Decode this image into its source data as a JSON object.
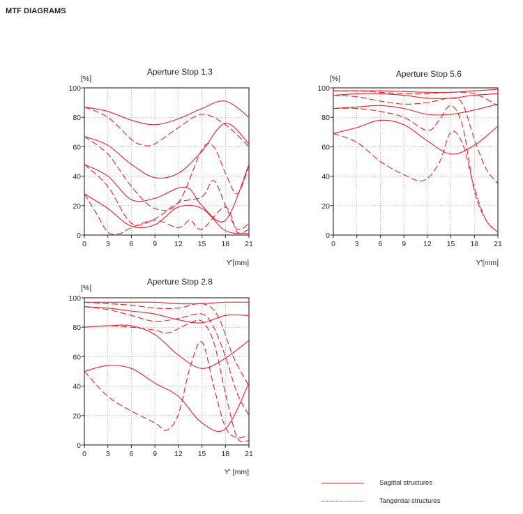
{
  "page": {
    "title": "MTF DIAGRAMS"
  },
  "colors": {
    "curve": "#e8202a",
    "axis": "#222222",
    "grid": "#888888"
  },
  "legend": {
    "sagittal": "Sagittal structures",
    "tangential": "Tangential structures"
  },
  "chart_data": [
    {
      "type": "line",
      "title": "Aperture Stop 1.3",
      "xlabel": "Y'[mm]",
      "ylabel": "[%]",
      "xlim": [
        0,
        21
      ],
      "ylim": [
        0,
        100
      ],
      "xticks": [
        0,
        3,
        6,
        9,
        12,
        15,
        18,
        21
      ],
      "yticks": [
        0,
        20,
        40,
        60,
        80,
        100
      ],
      "grid": true,
      "series": [
        {
          "name": "sagittal-5lp",
          "style": "solid",
          "x": [
            0,
            3,
            6,
            9,
            12,
            15,
            18,
            21
          ],
          "y": [
            87,
            84,
            78,
            75,
            79,
            86,
            91,
            80
          ]
        },
        {
          "name": "tangential-5lp",
          "style": "dashed",
          "x": [
            0,
            3,
            6,
            7.5,
            9,
            12,
            15,
            18,
            21
          ],
          "y": [
            87,
            80,
            65,
            61,
            62,
            73,
            82,
            75,
            60
          ]
        },
        {
          "name": "sagittal-10lp",
          "style": "solid",
          "x": [
            0,
            3,
            6,
            9,
            12,
            15,
            18,
            21
          ],
          "y": [
            67,
            61,
            48,
            39,
            42,
            57,
            76,
            62
          ]
        },
        {
          "name": "tangential-10lp",
          "style": "dashed",
          "x": [
            0,
            3,
            6,
            9,
            12,
            15,
            16.5,
            18,
            19.5,
            21
          ],
          "y": [
            67,
            55,
            33,
            18,
            22,
            58,
            60,
            42,
            28,
            47
          ]
        },
        {
          "name": "sagittal-20lp",
          "style": "solid",
          "x": [
            0,
            3,
            6,
            9,
            12,
            13.5,
            15,
            18,
            21
          ],
          "y": [
            48,
            40,
            24,
            25,
            32,
            31,
            20,
            10,
            48
          ]
        },
        {
          "name": "tangential-20lp",
          "style": "dashed",
          "x": [
            0,
            3,
            6,
            9,
            12,
            15,
            16.5,
            18,
            19.5,
            21
          ],
          "y": [
            48,
            33,
            8,
            11,
            22,
            26,
            37,
            20,
            4,
            8
          ]
        },
        {
          "name": "sagittal-40lp",
          "style": "solid",
          "x": [
            0,
            3,
            6,
            9,
            12,
            15,
            18,
            21
          ],
          "y": [
            28,
            18,
            6,
            7,
            19,
            18,
            3,
            1
          ]
        },
        {
          "name": "tangential-40lp",
          "style": "dashed",
          "x": [
            0,
            1.5,
            3,
            4.5,
            6,
            9,
            12,
            13.5,
            15,
            18,
            19.5,
            21
          ],
          "y": [
            28,
            15,
            2,
            1,
            5,
            10,
            5,
            10,
            4,
            19,
            2,
            4
          ]
        }
      ]
    },
    {
      "type": "line",
      "title": "Aperture Stop 5.6",
      "xlabel": "Y'[mm]",
      "ylabel": "[%]",
      "xlim": [
        0,
        21
      ],
      "ylim": [
        0,
        100
      ],
      "xticks": [
        0,
        3,
        6,
        9,
        12,
        15,
        18,
        21
      ],
      "yticks": [
        0,
        20,
        40,
        60,
        80,
        100
      ],
      "grid": true,
      "series": [
        {
          "name": "sagittal-5lp",
          "style": "solid",
          "x": [
            0,
            3,
            6,
            9,
            12,
            15,
            18,
            21
          ],
          "y": [
            98,
            98,
            98,
            97.5,
            97,
            97,
            98,
            99
          ]
        },
        {
          "name": "tangential-5lp",
          "style": "dashed",
          "x": [
            0,
            3,
            6,
            9,
            12,
            15,
            18,
            21
          ],
          "y": [
            98,
            98,
            97,
            96,
            96,
            97,
            96,
            88
          ]
        },
        {
          "name": "sagittal-10lp",
          "style": "solid",
          "x": [
            0,
            3,
            6,
            9,
            12,
            15,
            18,
            21
          ],
          "y": [
            95,
            96,
            96,
            95,
            93,
            93,
            95,
            96
          ]
        },
        {
          "name": "tangential-10lp",
          "style": "dashed",
          "x": [
            0,
            3,
            6,
            9,
            12,
            15,
            16.5,
            18,
            19.5,
            21
          ],
          "y": [
            95,
            94,
            91,
            89,
            90,
            93,
            89,
            65,
            45,
            35
          ]
        },
        {
          "name": "sagittal-20lp",
          "style": "solid",
          "x": [
            0,
            3,
            6,
            9,
            12,
            15,
            18,
            21
          ],
          "y": [
            86,
            87,
            88,
            86,
            82,
            82,
            85,
            89
          ]
        },
        {
          "name": "tangential-20lp",
          "style": "dashed",
          "x": [
            0,
            3,
            6,
            9,
            12,
            13.5,
            15,
            16.5,
            18,
            19.5,
            21
          ],
          "y": [
            86,
            86,
            84,
            80,
            71,
            78,
            88,
            74,
            30,
            10,
            2
          ]
        },
        {
          "name": "sagittal-40lp",
          "style": "solid",
          "x": [
            0,
            3,
            6,
            9,
            12,
            15,
            18,
            21
          ],
          "y": [
            69,
            73,
            78,
            75,
            64,
            55,
            61,
            74
          ]
        },
        {
          "name": "tangential-40lp",
          "style": "dashed",
          "x": [
            0,
            3,
            6,
            9,
            11.5,
            13.5,
            15,
            16.5,
            18,
            19.5,
            21
          ],
          "y": [
            69,
            63,
            50,
            41,
            37,
            49,
            70,
            62,
            32,
            10,
            2
          ]
        }
      ]
    },
    {
      "type": "line",
      "title": "Aperture Stop 2.8",
      "xlabel": "Y' [mm]",
      "ylabel": "[%]",
      "xlim": [
        0,
        21
      ],
      "ylim": [
        0,
        100
      ],
      "xticks": [
        0,
        3,
        6,
        9,
        12,
        15,
        18,
        21
      ],
      "yticks": [
        0,
        20,
        40,
        60,
        80,
        100
      ],
      "grid": true,
      "series": [
        {
          "name": "sagittal-5lp",
          "style": "solid",
          "x": [
            0,
            3,
            6,
            9,
            12,
            15,
            18,
            21
          ],
          "y": [
            97,
            97,
            97,
            97,
            96,
            96,
            97,
            97
          ]
        },
        {
          "name": "tangential-5lp",
          "style": "dashed",
          "x": [
            0,
            3,
            6,
            9,
            12,
            15,
            17,
            19,
            21
          ],
          "y": [
            97,
            96,
            95,
            93,
            93,
            96,
            88,
            60,
            40
          ]
        },
        {
          "name": "sagittal-10lp",
          "style": "solid",
          "x": [
            0,
            3,
            6,
            9,
            12,
            15,
            18,
            21
          ],
          "y": [
            94,
            93,
            91,
            89,
            85,
            83,
            88,
            88
          ]
        },
        {
          "name": "tangential-10lp",
          "style": "dashed",
          "x": [
            0,
            3,
            6,
            9,
            12,
            15,
            16.5,
            18,
            19.5,
            21
          ],
          "y": [
            94,
            92,
            88,
            84,
            86,
            89,
            80,
            60,
            35,
            20
          ]
        },
        {
          "name": "sagittal-20lp",
          "style": "solid",
          "x": [
            0,
            3,
            6,
            9,
            12,
            15,
            18,
            21
          ],
          "y": [
            80,
            81,
            81,
            75,
            61,
            52,
            59,
            71
          ]
        },
        {
          "name": "tangential-20lp",
          "style": "dashed",
          "x": [
            0,
            3,
            6,
            9,
            10.5,
            12,
            13.5,
            15,
            16.5,
            18,
            19.5,
            21
          ],
          "y": [
            80,
            81,
            80,
            78,
            76,
            79,
            83,
            84,
            70,
            35,
            5,
            3
          ]
        },
        {
          "name": "sagittal-40lp",
          "style": "solid",
          "x": [
            0,
            3,
            6,
            9,
            12,
            15,
            18,
            21
          ],
          "y": [
            50,
            54,
            52,
            42,
            33,
            15,
            11,
            42
          ]
        },
        {
          "name": "tangential-40lp",
          "style": "dashed",
          "x": [
            0,
            3,
            6,
            9,
            10.5,
            12,
            13.5,
            15,
            16.5,
            18,
            19.5,
            21
          ],
          "y": [
            50,
            33,
            23,
            15,
            10,
            21,
            53,
            70,
            40,
            12,
            5,
            7
          ]
        }
      ]
    }
  ]
}
